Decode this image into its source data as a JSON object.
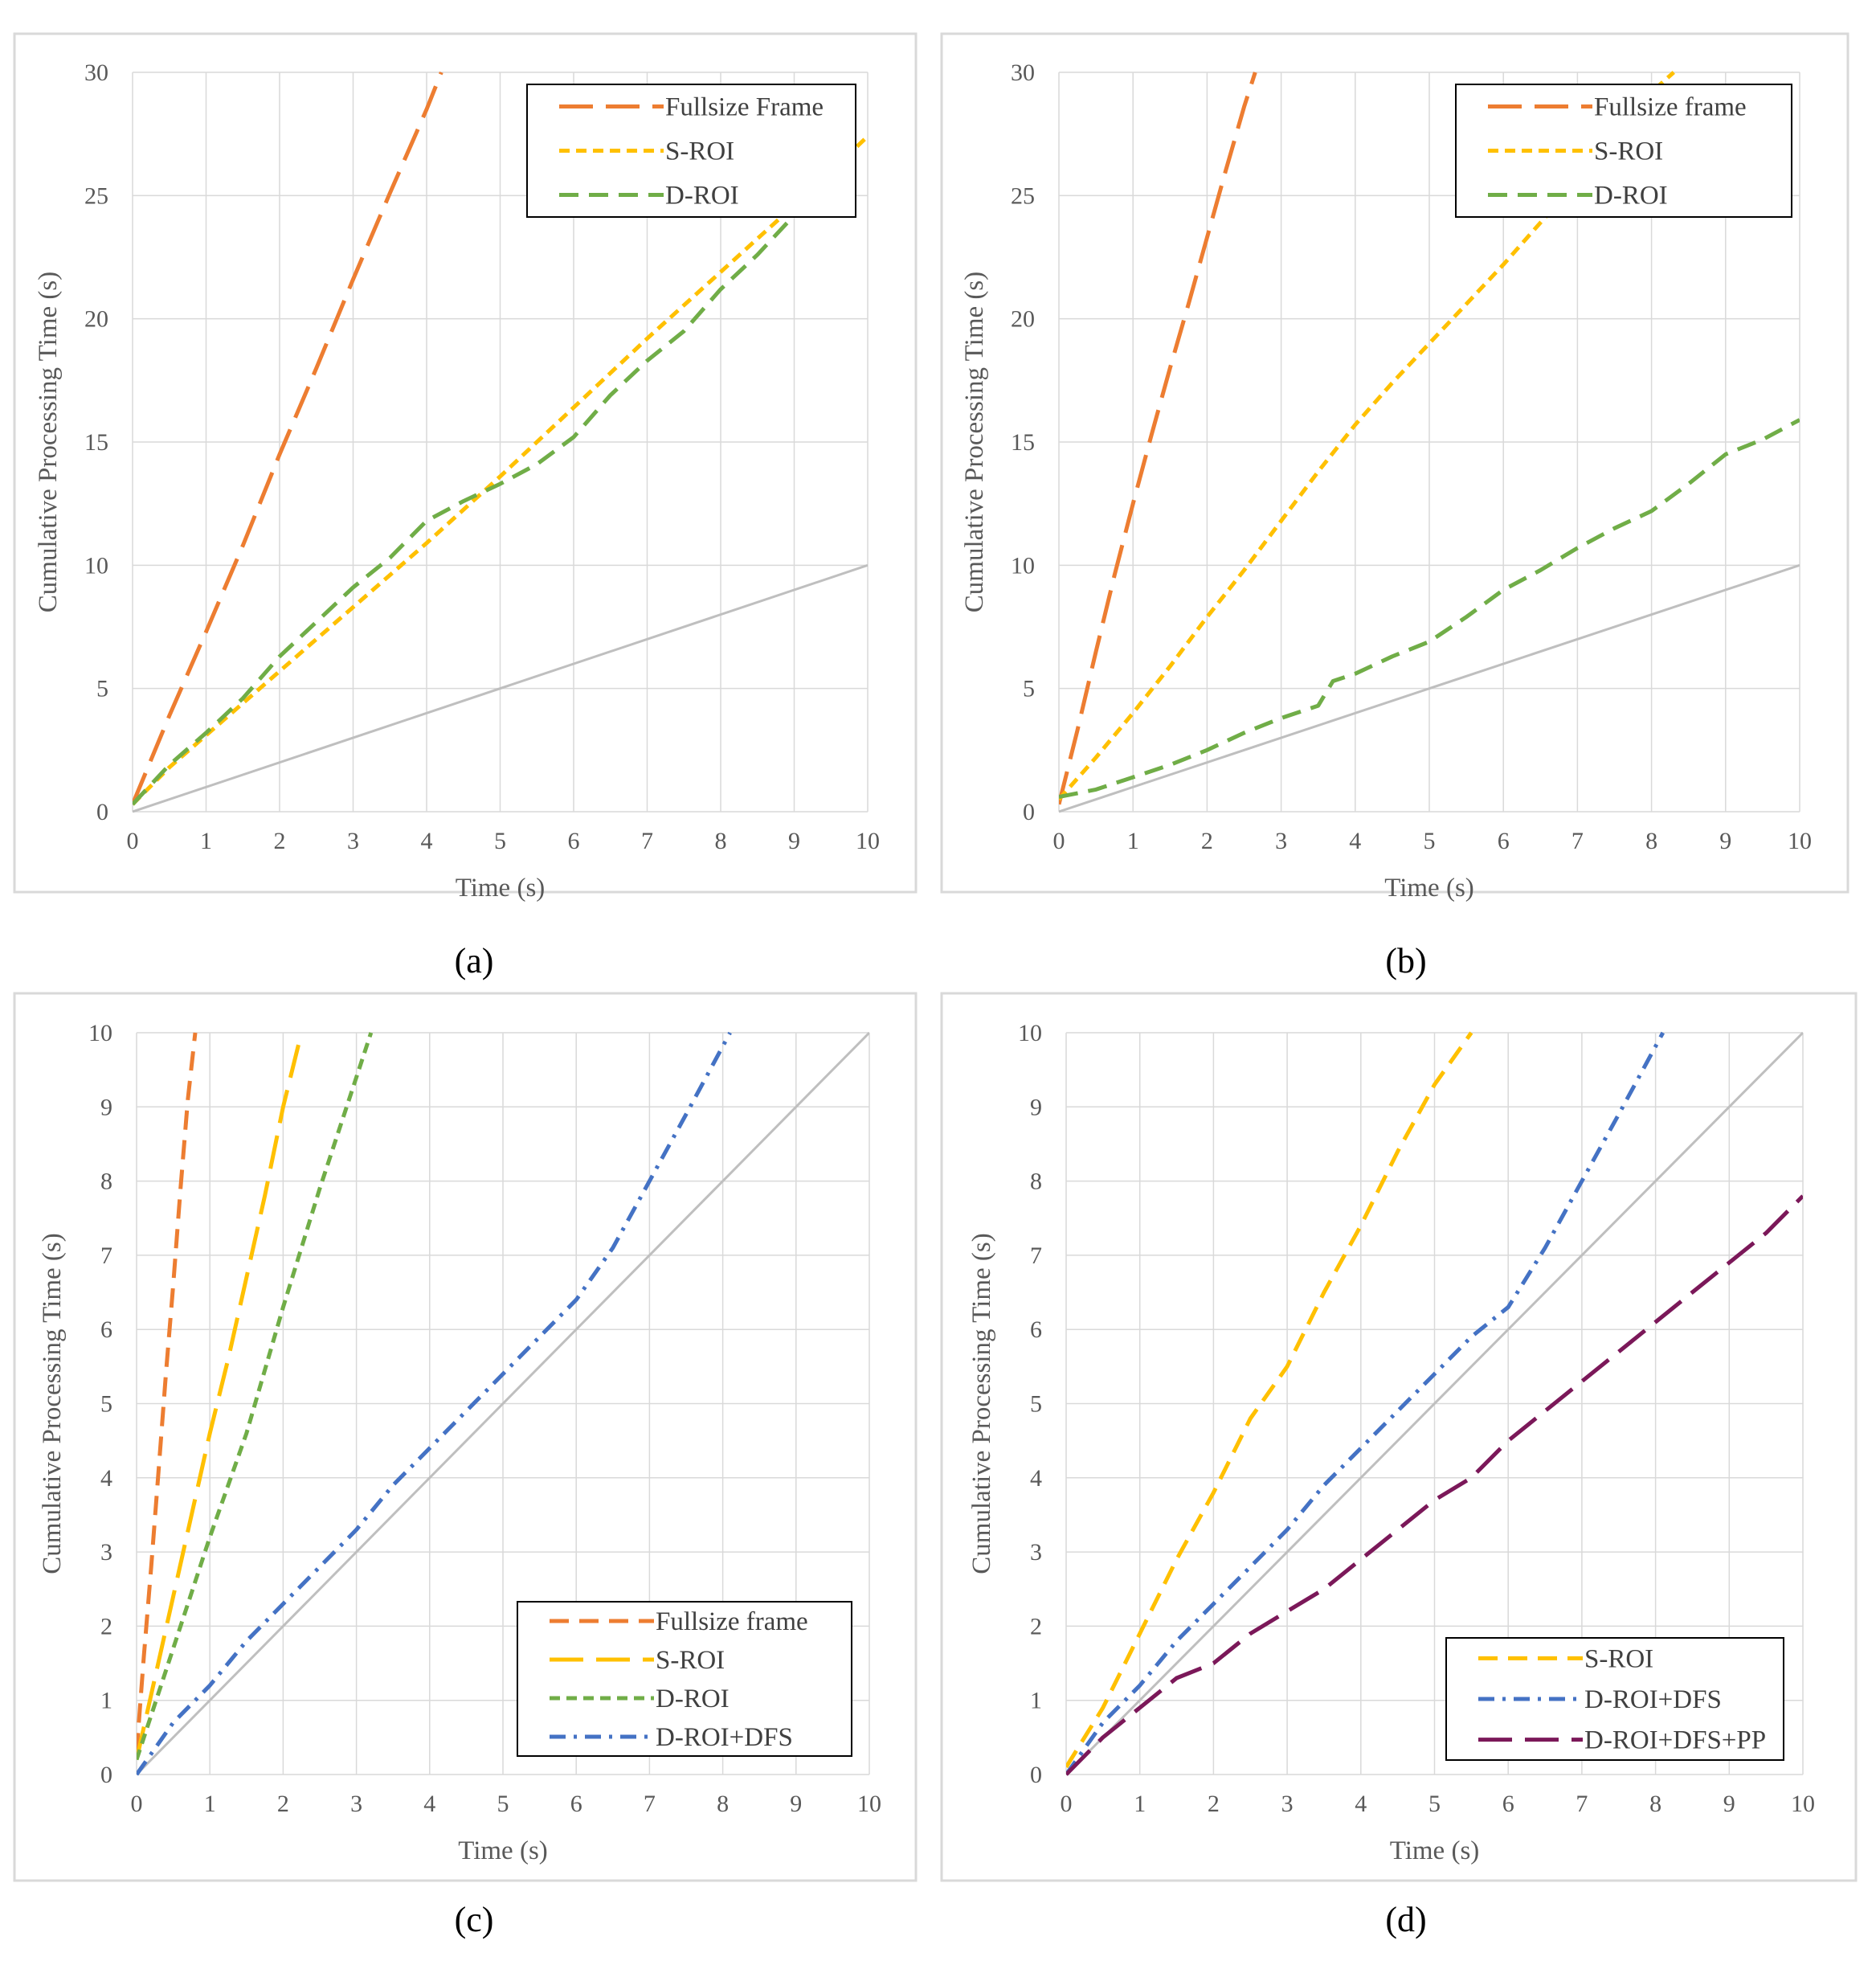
{
  "chart_data": [
    {
      "type": "line",
      "caption": "(a)",
      "xlabel": "Time (s)",
      "ylabel": "Cumulative Processing Time (s)",
      "xlim": [
        0,
        10
      ],
      "ylim": [
        0,
        30
      ],
      "xticks": [
        0,
        1,
        2,
        3,
        4,
        5,
        6,
        7,
        8,
        9,
        10
      ],
      "yticks": [
        0,
        5,
        10,
        15,
        20,
        25,
        30
      ],
      "legend_position": "top-right",
      "grid": true,
      "reference_line": {
        "x": [
          0,
          10
        ],
        "y": [
          0,
          10
        ],
        "color": "#bfbfbf"
      },
      "series": [
        {
          "name": "Fullsize Frame",
          "color": "#ed7d31",
          "style": "long-dash",
          "x": [
            0,
            0.5,
            1,
            1.5,
            2,
            2.5,
            3,
            3.5,
            4,
            4.2
          ],
          "y": [
            0.3,
            3.9,
            7.3,
            10.8,
            14.5,
            18.0,
            21.6,
            25.1,
            28.5,
            30
          ]
        },
        {
          "name": "S-ROI",
          "color": "#ffc000",
          "style": "short-dash",
          "x": [
            0,
            0.5,
            1,
            2,
            3,
            4,
            5,
            6,
            7,
            8,
            9,
            10
          ],
          "y": [
            0.3,
            1.8,
            3.1,
            5.7,
            8.3,
            10.9,
            13.6,
            16.4,
            19.2,
            21.9,
            24.6,
            27.4
          ]
        },
        {
          "name": "D-ROI",
          "color": "#70ad47",
          "style": "dash",
          "x": [
            0,
            0.5,
            1,
            1.5,
            2,
            2.5,
            3,
            3.5,
            4,
            4.5,
            5,
            5.5,
            6,
            6.5,
            7,
            7.5,
            8,
            8.5,
            9,
            9.5
          ],
          "y": [
            0.3,
            1.9,
            3.2,
            4.6,
            6.3,
            7.7,
            9.1,
            10.3,
            11.8,
            12.6,
            13.3,
            14.1,
            15.2,
            16.9,
            18.3,
            19.5,
            21.2,
            22.6,
            24.2,
            25.5
          ]
        }
      ]
    },
    {
      "type": "line",
      "caption": "(b)",
      "xlabel": "Time (s)",
      "ylabel": "Cumulative Processing Time (s)",
      "xlim": [
        0,
        10
      ],
      "ylim": [
        0,
        30
      ],
      "xticks": [
        0,
        1,
        2,
        3,
        4,
        5,
        6,
        7,
        8,
        9,
        10
      ],
      "yticks": [
        0,
        5,
        10,
        15,
        20,
        25,
        30
      ],
      "legend_position": "top-right",
      "grid": true,
      "reference_line": {
        "x": [
          0,
          10
        ],
        "y": [
          0,
          10
        ],
        "color": "#bfbfbf"
      },
      "series": [
        {
          "name": "Fullsize frame",
          "color": "#ed7d31",
          "style": "long-dash",
          "x": [
            0,
            0.25,
            0.5,
            0.75,
            1,
            1.25,
            1.5,
            1.75,
            2,
            2.25,
            2.5,
            2.65
          ],
          "y": [
            0.3,
            3.3,
            6.5,
            9.6,
            12.5,
            15.3,
            18.0,
            20.6,
            23.3,
            26.0,
            28.6,
            30
          ]
        },
        {
          "name": "S-ROI",
          "color": "#ffc000",
          "style": "short-dash",
          "x": [
            0,
            0.5,
            1,
            1.5,
            2,
            2.5,
            3,
            3.5,
            4,
            4.5,
            5,
            5.5,
            6,
            6.5,
            7,
            7.5,
            8,
            8.3
          ],
          "y": [
            0.5,
            2.2,
            4.0,
            5.9,
            7.9,
            9.8,
            11.8,
            13.8,
            15.7,
            17.4,
            19.0,
            20.6,
            22.2,
            23.9,
            25.6,
            27.4,
            29.2,
            30
          ]
        },
        {
          "name": "D-ROI",
          "color": "#70ad47",
          "style": "dash",
          "x": [
            0,
            0.5,
            1,
            1.5,
            2,
            2.5,
            3,
            3.5,
            3.7,
            4,
            4.5,
            5,
            5.5,
            6,
            6.5,
            7,
            7.5,
            8,
            8.5,
            9,
            9.5,
            10
          ],
          "y": [
            0.6,
            0.9,
            1.4,
            1.9,
            2.5,
            3.2,
            3.8,
            4.3,
            5.3,
            5.6,
            6.3,
            6.9,
            7.9,
            9.0,
            9.8,
            10.7,
            11.5,
            12.2,
            13.3,
            14.5,
            15.1,
            15.9
          ]
        }
      ]
    },
    {
      "type": "line",
      "caption": "(c)",
      "xlabel": "Time (s)",
      "ylabel": "Cumulative Processing Time (s)",
      "xlim": [
        0,
        10
      ],
      "ylim": [
        0,
        10
      ],
      "xticks": [
        0,
        1,
        2,
        3,
        4,
        5,
        6,
        7,
        8,
        9,
        10
      ],
      "yticks": [
        0,
        1,
        2,
        3,
        4,
        5,
        6,
        7,
        8,
        9,
        10
      ],
      "legend_position": "bottom-right",
      "grid": true,
      "reference_line": {
        "x": [
          0,
          10
        ],
        "y": [
          0,
          10
        ],
        "color": "#bfbfbf"
      },
      "series": [
        {
          "name": "Fullsize frame",
          "color": "#ed7d31",
          "style": "dash",
          "x": [
            0,
            0.1,
            0.2,
            0.3,
            0.4,
            0.5,
            0.6,
            0.7,
            0.8
          ],
          "y": [
            0.3,
            1.6,
            2.8,
            4.1,
            5.4,
            6.6,
            7.9,
            9.1,
            10
          ]
        },
        {
          "name": "S-ROI",
          "color": "#ffc000",
          "style": "long-dash",
          "x": [
            0,
            0.25,
            0.5,
            0.75,
            1,
            1.25,
            1.5,
            1.75,
            2,
            2.25
          ],
          "y": [
            0.2,
            1.3,
            2.4,
            3.5,
            4.6,
            5.6,
            6.7,
            7.8,
            9.0,
            10
          ]
        },
        {
          "name": "D-ROI",
          "color": "#70ad47",
          "style": "short-dash",
          "x": [
            0,
            0.5,
            1,
            1.5,
            2,
            2.5,
            3,
            3.2
          ],
          "y": [
            0.2,
            1.7,
            3.2,
            4.6,
            6.3,
            7.9,
            9.4,
            10
          ]
        },
        {
          "name": "D-ROI+DFS",
          "color": "#4472c4",
          "style": "dash-dot",
          "x": [
            0,
            0.5,
            1,
            1.5,
            2,
            2.5,
            3,
            3.5,
            4,
            4.5,
            5,
            5.5,
            6,
            6.5,
            7,
            7.5,
            8.1
          ],
          "y": [
            0,
            0.7,
            1.2,
            1.8,
            2.3,
            2.8,
            3.3,
            3.9,
            4.4,
            4.9,
            5.4,
            5.9,
            6.4,
            7.1,
            8.0,
            8.9,
            10
          ]
        }
      ]
    },
    {
      "type": "line",
      "caption": "(d)",
      "xlabel": "Time (s)",
      "ylabel": "Cumulative Processing Time (s)",
      "xlim": [
        0,
        10
      ],
      "ylim": [
        0,
        10
      ],
      "xticks": [
        0,
        1,
        2,
        3,
        4,
        5,
        6,
        7,
        8,
        9,
        10
      ],
      "yticks": [
        0,
        1,
        2,
        3,
        4,
        5,
        6,
        7,
        8,
        9,
        10
      ],
      "legend_position": "bottom-right",
      "grid": true,
      "reference_line": {
        "x": [
          0,
          10
        ],
        "y": [
          0,
          10
        ],
        "color": "#bfbfbf"
      },
      "series": [
        {
          "name": "S-ROI",
          "color": "#ffc000",
          "style": "dash",
          "x": [
            0,
            0.5,
            1,
            1.5,
            2,
            2.5,
            3,
            3.5,
            4,
            4.5,
            5,
            5.5
          ],
          "y": [
            0.1,
            0.9,
            1.9,
            2.9,
            3.8,
            4.8,
            5.5,
            6.5,
            7.4,
            8.4,
            9.3,
            10
          ]
        },
        {
          "name": "D-ROI+DFS",
          "color": "#4472c4",
          "style": "dash-dot",
          "x": [
            0,
            0.5,
            1,
            1.5,
            2,
            2.5,
            3,
            3.5,
            4,
            4.5,
            5,
            5.5,
            6,
            6.5,
            7,
            7.5,
            8.1
          ],
          "y": [
            0,
            0.7,
            1.2,
            1.8,
            2.3,
            2.8,
            3.3,
            3.9,
            4.4,
            4.9,
            5.4,
            5.9,
            6.3,
            7.1,
            8.0,
            8.9,
            10
          ]
        },
        {
          "name": "D-ROI+DFS+PP",
          "color": "#7b1859",
          "style": "long-dash",
          "x": [
            0,
            0.5,
            1,
            1.5,
            2,
            2.5,
            3,
            3.5,
            4,
            4.5,
            5,
            5.5,
            6,
            6.5,
            7,
            7.5,
            8,
            8.5,
            9,
            9.5,
            10
          ],
          "y": [
            0,
            0.5,
            0.9,
            1.3,
            1.5,
            1.9,
            2.2,
            2.5,
            2.9,
            3.3,
            3.7,
            4.0,
            4.5,
            4.9,
            5.3,
            5.7,
            6.1,
            6.5,
            6.9,
            7.3,
            7.8
          ]
        }
      ]
    }
  ]
}
